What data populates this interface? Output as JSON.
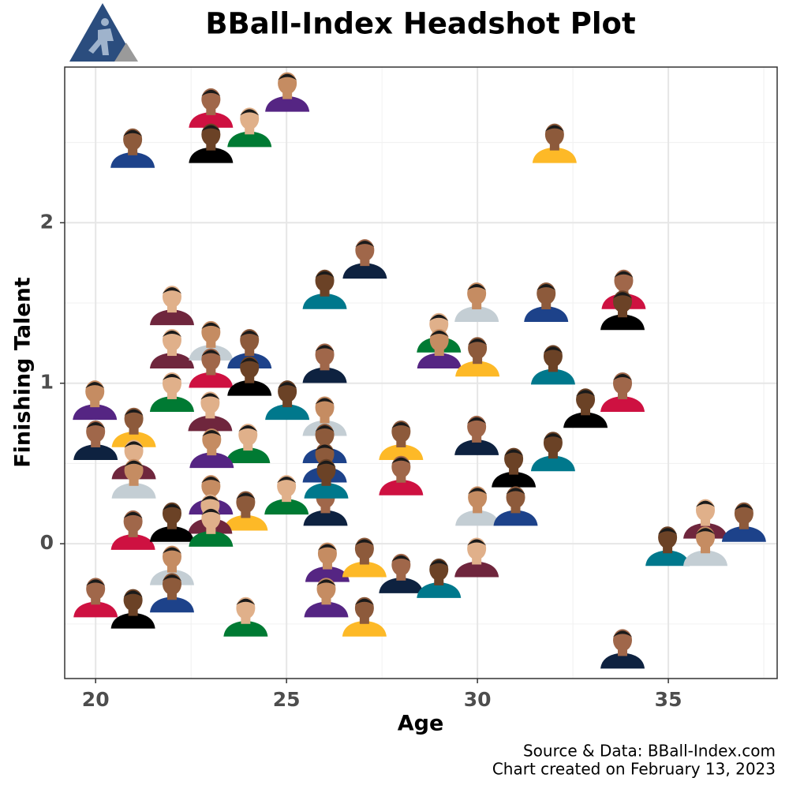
{
  "chart_data": {
    "type": "scatter",
    "title": "BBall-Index Headshot Plot",
    "xlabel": "Age",
    "ylabel": "Finishing Talent",
    "caption": [
      "Source & Data: BBall-Index.com",
      "Chart created on February 13, 2023"
    ],
    "xlim": [
      19.19,
      37.85
    ],
    "ylim": [
      -0.84,
      2.97
    ],
    "xticks": [
      20,
      25,
      30,
      35
    ],
    "yticks": [
      0,
      1,
      2
    ],
    "xminorticks": [
      22.5,
      27.5,
      32.5,
      37.5
    ],
    "yminorticks": [
      -0.5,
      0.5,
      1.5,
      2.5
    ],
    "grid": true,
    "x": [
      20.97,
      23.02,
      23.02,
      24.03,
      25.02,
      32.02,
      27.05,
      26.0,
      22.0,
      29.98,
      31.8,
      33.83,
      33.8,
      28.99,
      29.0,
      30.0,
      26.0,
      31.98,
      22.0,
      23.02,
      24.03,
      23.02,
      24.03,
      22.0,
      19.98,
      21.0,
      20.0,
      25.02,
      23.0,
      26.0,
      26.0,
      33.8,
      32.83,
      23.99,
      23.04,
      28.0,
      29.98,
      31.98,
      21.0,
      21.0,
      26.0,
      28.0,
      30.95,
      25.0,
      23.02,
      23.93,
      26.02,
      26.04,
      23.0,
      30.0,
      31.0,
      20.98,
      22.0,
      23.02,
      26.07,
      27.04,
      28.0,
      28.99,
      29.98,
      22.0,
      22.0,
      20.0,
      20.98,
      23.93,
      26.04,
      27.04,
      33.8,
      34.98,
      35.97,
      35.97,
      36.98
    ],
    "y": [
      2.45,
      2.7,
      2.48,
      2.58,
      2.8,
      2.48,
      1.76,
      1.57,
      1.47,
      1.49,
      1.49,
      1.57,
      1.44,
      1.3,
      1.2,
      1.15,
      1.11,
      1.1,
      1.2,
      1.25,
      1.2,
      1.08,
      1.03,
      0.93,
      0.88,
      0.71,
      0.63,
      0.88,
      0.81,
      0.78,
      0.61,
      0.93,
      0.83,
      0.61,
      0.58,
      0.63,
      0.66,
      0.56,
      0.51,
      0.39,
      0.49,
      0.41,
      0.46,
      0.29,
      0.29,
      0.19,
      0.22,
      0.39,
      0.17,
      0.22,
      0.22,
      0.07,
      0.12,
      0.09,
      -0.13,
      -0.1,
      -0.2,
      -0.23,
      -0.1,
      -0.15,
      -0.32,
      -0.35,
      -0.42,
      -0.47,
      -0.35,
      -0.47,
      -0.67,
      -0.03,
      0.14,
      -0.03,
      0.12
    ]
  }
}
